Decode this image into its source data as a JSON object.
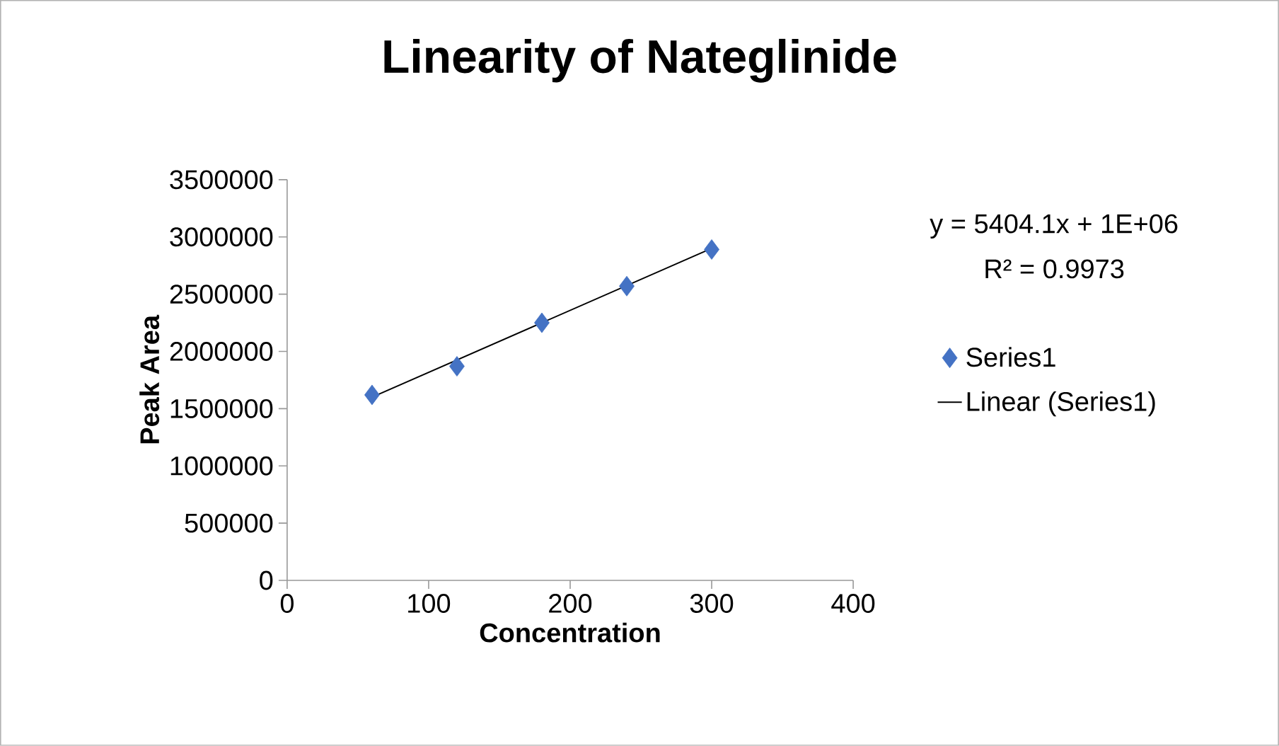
{
  "chart_data": {
    "type": "scatter",
    "title": "Linearity of Nateglinide",
    "xlabel": "Concentration",
    "ylabel": "Peak Area",
    "xlim": [
      0,
      400
    ],
    "xticks": [
      0,
      100,
      200,
      300,
      400
    ],
    "ylim": [
      0,
      3500000
    ],
    "yticks": [
      0,
      500000,
      1000000,
      1500000,
      2000000,
      2500000,
      3000000,
      3500000
    ],
    "x": [
      60,
      120,
      180,
      240,
      300
    ],
    "series": [
      {
        "name": "Series1",
        "color": "#4472c4",
        "marker": "diamond",
        "values": [
          1620000,
          1870000,
          2250000,
          2570000,
          2890000
        ]
      },
      {
        "name": "Linear (Series1)",
        "type": "line",
        "color": "#000000",
        "marker": "none",
        "line_style": "solid",
        "x": [
          60,
          300
        ],
        "values": [
          1600000,
          2900000
        ]
      }
    ],
    "annotations": [
      "y = 5404.1x + 1E+06",
      "R² = 0.9973"
    ],
    "legend": "right",
    "grid": false
  }
}
